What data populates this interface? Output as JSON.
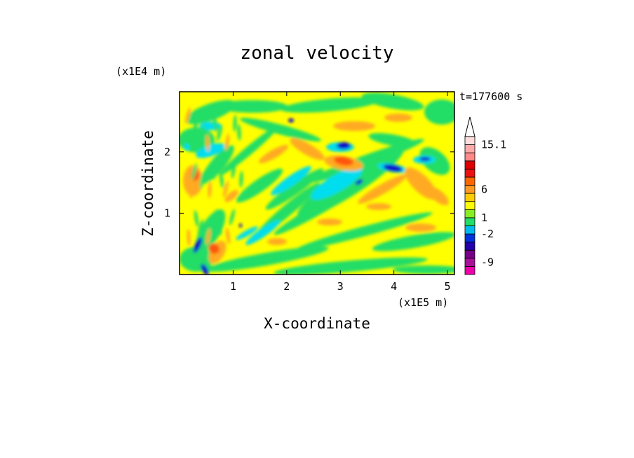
{
  "chart_data": {
    "type": "heatmap",
    "title": "zonal velocity",
    "xlabel": "X-coordinate",
    "ylabel": "Z-coordinate",
    "x_unit": "(x1E5 m)",
    "y_unit": "(x1E4 m)",
    "time_label": "t=177600 s",
    "xlim": [
      0.0,
      5.13
    ],
    "ylim": [
      0.0,
      2.98
    ],
    "x_ticks": [
      1,
      2,
      3,
      4,
      5
    ],
    "y_ticks": [
      1,
      2
    ],
    "x_tick_labels": [
      "1",
      "2",
      "3",
      "4",
      "5"
    ],
    "y_tick_labels": [
      "1",
      "2"
    ],
    "grid": false,
    "legend_position": "right",
    "colorbar": {
      "colors": [
        "#ee00aa",
        "#aa1199",
        "#770088",
        "#2200aa",
        "#0033dd",
        "#00bbee",
        "#22dd66",
        "#88ee22",
        "#ffff00",
        "#ffcc00",
        "#ff9922",
        "#ff6600",
        "#ee1111",
        "#dd0000",
        "#ff8888",
        "#ffaaaa",
        "#ffdddd"
      ],
      "labels": [
        {
          "text": "-9",
          "level": 1.5
        },
        {
          "text": "-2",
          "level": 5
        },
        {
          "text": "1",
          "level": 7
        },
        {
          "text": "6",
          "level": 10.5
        },
        {
          "text": "15.1",
          "level": 16
        }
      ]
    }
  }
}
